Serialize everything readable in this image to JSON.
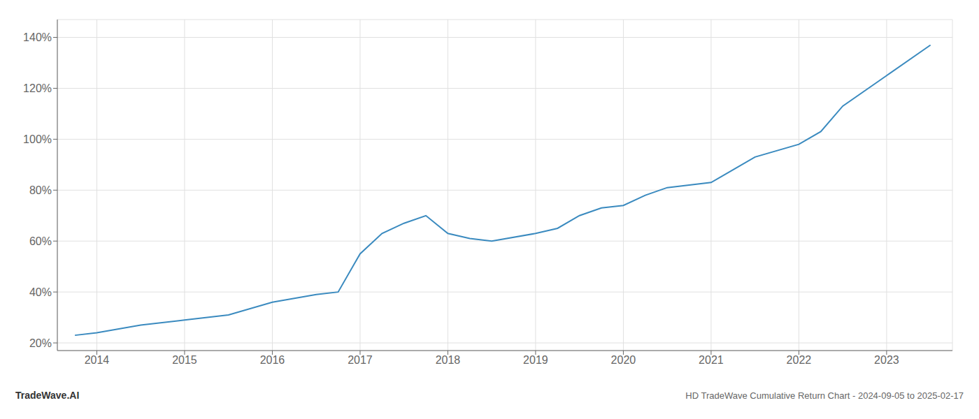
{
  "chart_data": {
    "type": "line",
    "title": "HD TradeWave Cumulative Return Chart - 2024-09-05 to 2025-02-17",
    "annotations": [
      "TradeWave.AI"
    ],
    "x": [
      2013.75,
      2014.0,
      2014.5,
      2015.0,
      2015.5,
      2016.0,
      2016.5,
      2016.75,
      2017.0,
      2017.25,
      2017.5,
      2017.75,
      2018.0,
      2018.25,
      2018.5,
      2019.0,
      2019.25,
      2019.5,
      2019.75,
      2020.0,
      2020.25,
      2020.5,
      2021.0,
      2021.25,
      2021.5,
      2022.0,
      2022.25,
      2022.5,
      2023.0,
      2023.5
    ],
    "values": [
      23,
      24,
      27,
      29,
      31,
      36,
      39,
      40,
      55,
      63,
      67,
      70,
      63,
      61,
      60,
      63,
      65,
      70,
      73,
      74,
      78,
      81,
      83,
      88,
      93,
      98,
      103,
      113,
      125,
      137
    ],
    "color": "#3a8abf",
    "xlim": [
      2013.55,
      2023.75
    ],
    "xticks": [
      2014,
      2015,
      2016,
      2017,
      2018,
      2019,
      2020,
      2021,
      2022,
      2023
    ],
    "ylim": [
      17,
      147
    ],
    "yticks": [
      {
        "value": 20,
        "label": "20%"
      },
      {
        "value": 40,
        "label": "40%"
      },
      {
        "value": 60,
        "label": "60%"
      },
      {
        "value": 80,
        "label": "80%"
      },
      {
        "value": 100,
        "label": "100%"
      },
      {
        "value": 120,
        "label": "120%"
      },
      {
        "value": 140,
        "label": "140%"
      }
    ],
    "grid": true
  }
}
